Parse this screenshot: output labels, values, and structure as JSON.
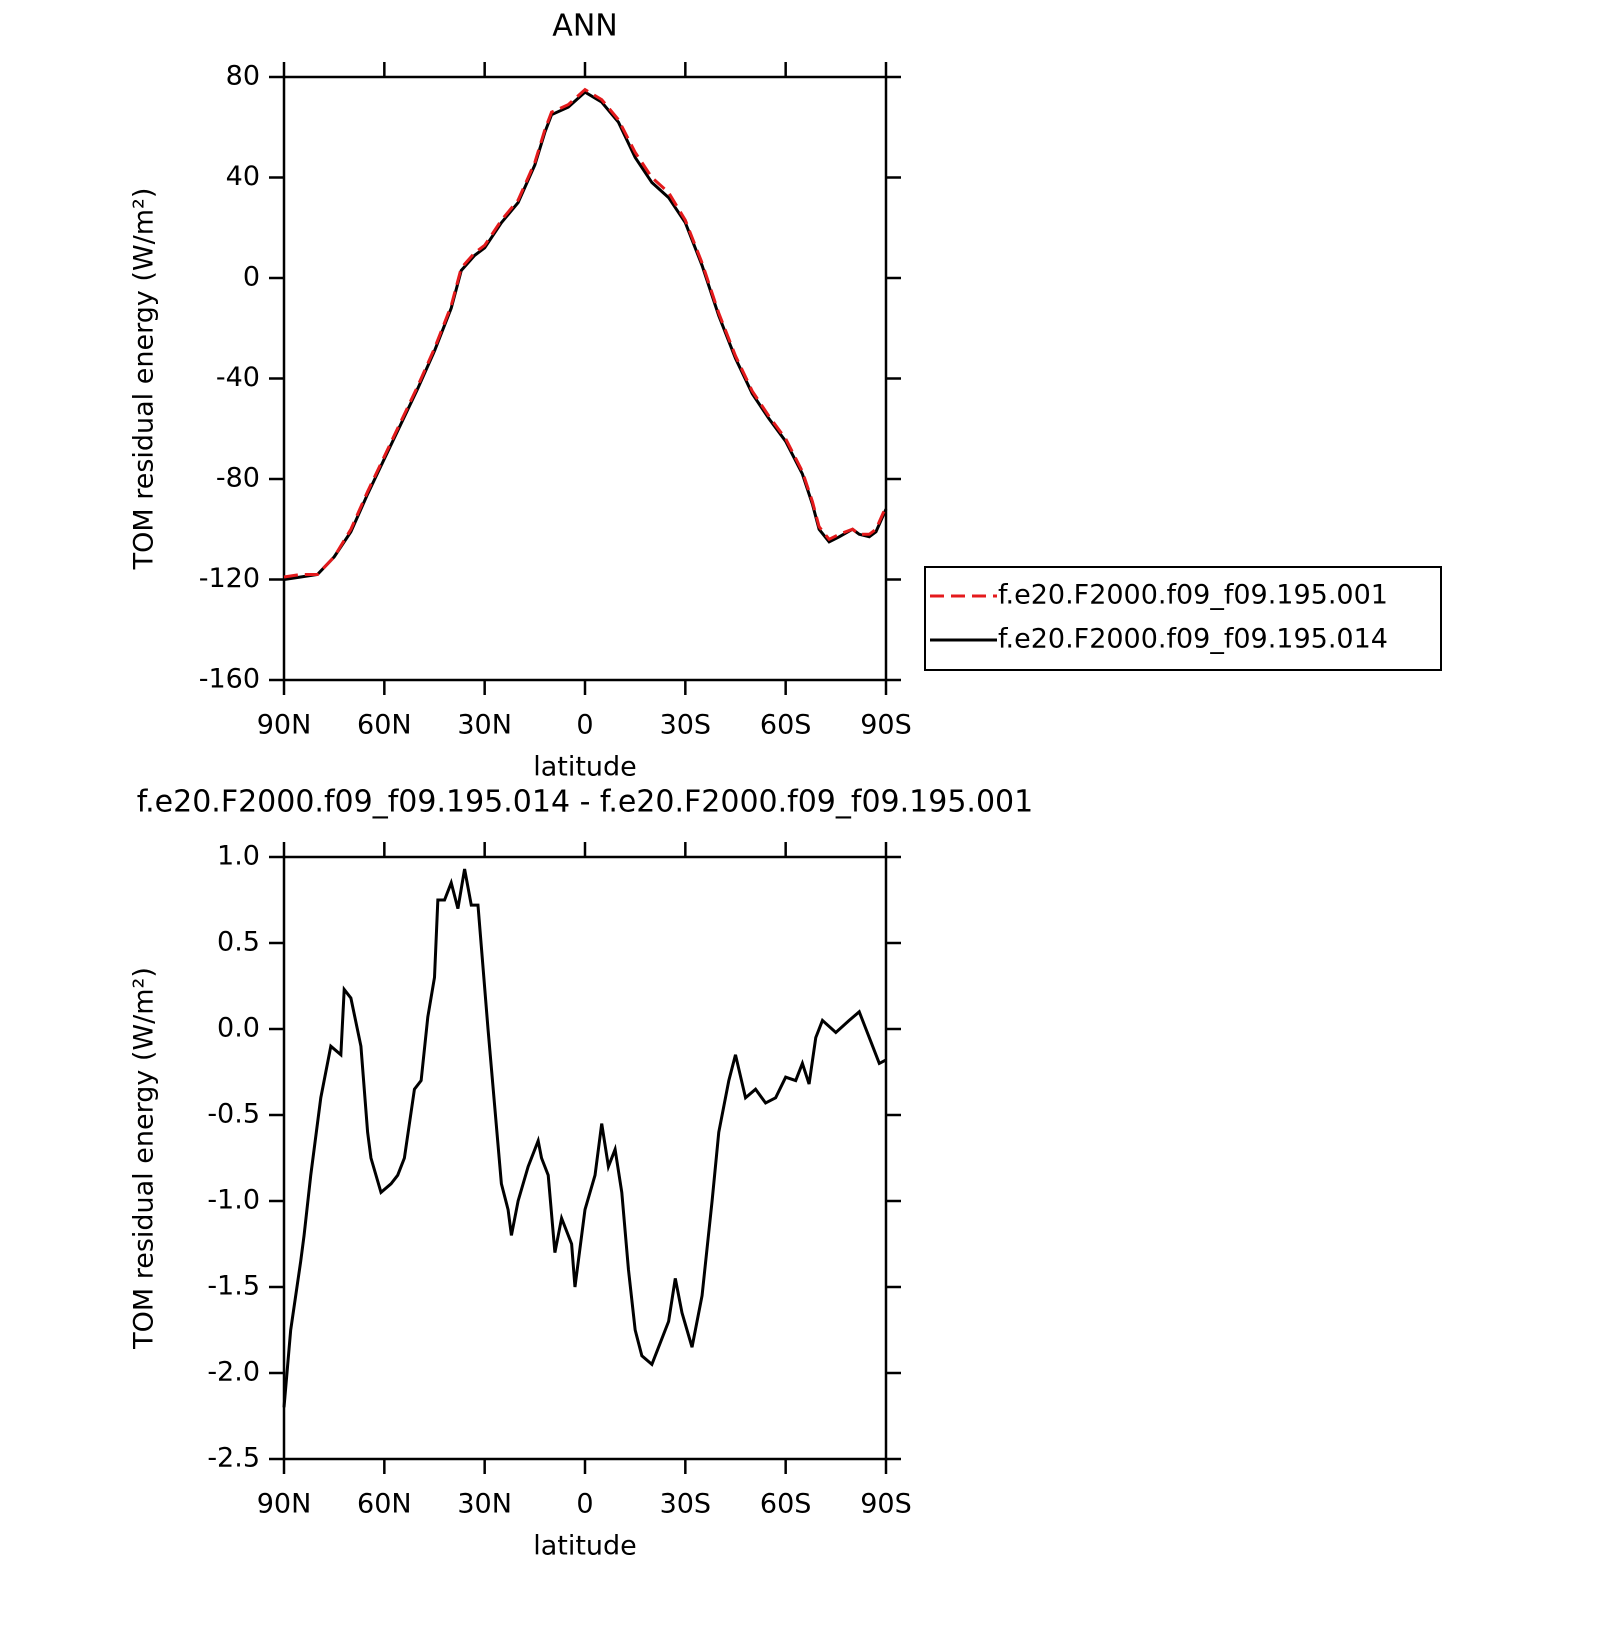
{
  "chart_data": [
    {
      "type": "line",
      "title": "ANN",
      "xlabel": "latitude",
      "ylabel": "TOM residual energy (W/m²)",
      "xlim": [
        90,
        -90
      ],
      "ylim": [
        -160,
        80
      ],
      "xticks": [
        {
          "value": 90,
          "label": "90N"
        },
        {
          "value": 60,
          "label": "60N"
        },
        {
          "value": 30,
          "label": "30N"
        },
        0,
        {
          "value": -30,
          "label": "30S"
        },
        {
          "value": -60,
          "label": "60S"
        },
        {
          "value": -90,
          "label": "90S"
        }
      ],
      "yticks": [
        80,
        40,
        0,
        -40,
        -80,
        -120,
        -160
      ],
      "legend": "outside-right",
      "x": [
        90,
        85,
        80,
        75,
        70,
        65,
        60,
        55,
        50,
        45,
        40,
        37,
        33,
        30,
        25,
        20,
        15,
        12,
        10,
        5,
        0,
        -5,
        -10,
        -15,
        -20,
        -25,
        -30,
        -35,
        -40,
        -45,
        -50,
        -55,
        -60,
        -65,
        -68,
        -70,
        -73,
        -76,
        -80,
        -82,
        -85,
        -87,
        -90
      ],
      "series": [
        {
          "name": "f.e20.F2000.f09_f09.195.001",
          "color": "#e41a1c",
          "dash": true,
          "values": [
            -119,
            -118,
            -118,
            -111,
            -100,
            -85,
            -71,
            -57,
            -43,
            -28,
            -11,
            4,
            10,
            13,
            23,
            31,
            46,
            59,
            66,
            69,
            75,
            71,
            63,
            50,
            40,
            34,
            23,
            6,
            -14,
            -31,
            -45,
            -55,
            -64,
            -77,
            -89,
            -99,
            -104,
            -102,
            -100,
            -102,
            -102,
            -100,
            -91
          ]
        },
        {
          "name": "f.e20.F2000.f09_f09.195.014",
          "color": "#000000",
          "dash": false,
          "values": [
            -120,
            -119,
            -118,
            -111,
            -101,
            -86,
            -72,
            -58,
            -44,
            -29,
            -12,
            3,
            9,
            12,
            22,
            30,
            45,
            58,
            65,
            68,
            74,
            70,
            62,
            48,
            38,
            32,
            22,
            5,
            -15,
            -32,
            -46,
            -56,
            -65,
            -78,
            -90,
            -100,
            -105,
            -103,
            -100,
            -102,
            -103,
            -101,
            -92
          ]
        }
      ]
    },
    {
      "type": "line",
      "title": "f.e20.F2000.f09_f09.195.014 - f.e20.F2000.f09_f09.195.001",
      "xlabel": "latitude",
      "ylabel": "TOM residual energy (W/m²)",
      "xlim": [
        90,
        -90
      ],
      "ylim": [
        -2.5,
        1
      ],
      "xticks": [
        {
          "value": 90,
          "label": "90N"
        },
        {
          "value": 60,
          "label": "60N"
        },
        {
          "value": 30,
          "label": "30N"
        },
        0,
        {
          "value": -30,
          "label": "30S"
        },
        {
          "value": -60,
          "label": "60S"
        },
        {
          "value": -90,
          "label": "90S"
        }
      ],
      "yticks": [
        {
          "value": 1,
          "label": "1.0"
        },
        0.5,
        {
          "value": 0,
          "label": "0.0"
        },
        -0.5,
        {
          "value": -1,
          "label": "-1.0"
        },
        -1.5,
        {
          "value": -2,
          "label": "-2.0"
        },
        -2.5
      ],
      "x": [
        90,
        88,
        85,
        84,
        82,
        79,
        76,
        73,
        72,
        70,
        67,
        65,
        64,
        61,
        58,
        56,
        54,
        51,
        49,
        47,
        45,
        44,
        42,
        40,
        38,
        36,
        34,
        32,
        29,
        27,
        25,
        23,
        22,
        20,
        17,
        14,
        13,
        11,
        9,
        7,
        4,
        3,
        0,
        -3,
        -5,
        -7,
        -9,
        -11,
        -13,
        -15,
        -17,
        -20,
        -22,
        -25,
        -27,
        -29,
        -32,
        -35,
        -38,
        -40,
        -43,
        -45,
        -48,
        -51,
        -54,
        -57,
        -60,
        -63,
        -65,
        -67,
        -69,
        -71,
        -75,
        -79,
        -82,
        -84,
        -85,
        -88,
        -90
      ],
      "series": [
        {
          "color": "#000000",
          "dash": false,
          "values": [
            -2.2,
            -1.75,
            -1.35,
            -1.2,
            -0.85,
            -0.4,
            -0.1,
            -0.15,
            0.23,
            0.18,
            -0.1,
            -0.6,
            -0.75,
            -0.95,
            -0.9,
            -0.85,
            -0.75,
            -0.35,
            -0.3,
            0.07,
            0.3,
            0.75,
            0.75,
            0.85,
            0.7,
            0.93,
            0.72,
            0.72,
            0,
            -0.45,
            -0.9,
            -1.05,
            -1.2,
            -1,
            -0.8,
            -0.65,
            -0.75,
            -0.85,
            -1.3,
            -1.1,
            -1.25,
            -1.5,
            -1.05,
            -0.85,
            -0.55,
            -0.8,
            -0.7,
            -0.95,
            -1.4,
            -1.75,
            -1.9,
            -1.95,
            -1.85,
            -1.7,
            -1.45,
            -1.65,
            -1.85,
            -1.55,
            -1,
            -0.6,
            -0.3,
            -0.15,
            -0.4,
            -0.35,
            -0.43,
            -0.4,
            -0.28,
            -0.3,
            -0.2,
            -0.32,
            -0.05,
            0.05,
            -0.02,
            0.05,
            0.1,
            0,
            -0.05,
            -0.2,
            -0.18
          ]
        }
      ]
    }
  ]
}
